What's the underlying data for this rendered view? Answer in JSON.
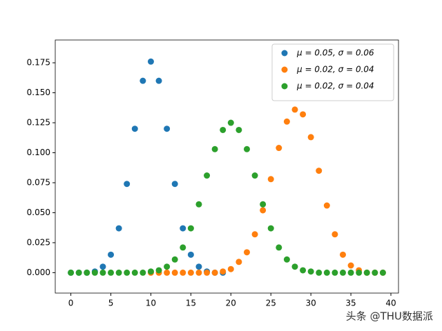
{
  "chart_data": {
    "type": "scatter",
    "legend": "upper right",
    "watermark": "头条 @THU数据派",
    "xlim": [
      -1.95,
      40.95
    ],
    "xticks": [
      0,
      5,
      10,
      15,
      20,
      25,
      30,
      35,
      40
    ],
    "ylim": [
      -0.017,
      0.194
    ],
    "yticks": [
      {
        "value": 0,
        "label": "0.000"
      },
      {
        "value": 0.025,
        "label": "0.025"
      },
      {
        "value": 0.05,
        "label": "0.050"
      },
      {
        "value": 0.075,
        "label": "0.075"
      },
      {
        "value": 0.1,
        "label": "0.100"
      },
      {
        "value": 0.125,
        "label": "0.125"
      },
      {
        "value": 0.15,
        "label": "0.150"
      },
      {
        "value": 0.175,
        "label": "0.175"
      }
    ],
    "series": [
      {
        "name": "μ = 0.05,  σ = 0.06",
        "color": "#1f77b4",
        "x": [
          0,
          1,
          2,
          3,
          4,
          5,
          6,
          7,
          8,
          9,
          10,
          11,
          12,
          13,
          14,
          15,
          16,
          17,
          18,
          19
        ],
        "values": [
          0,
          0,
          0,
          0.001,
          0.005,
          0.015,
          0.037,
          0.074,
          0.12,
          0.16,
          0.176,
          0.16,
          0.12,
          0.074,
          0.037,
          0.015,
          0.005,
          0.001,
          0,
          0
        ]
      },
      {
        "name": "μ = 0.02,  σ = 0.04",
        "color": "#ff7f0e",
        "x": [
          10,
          11,
          12,
          13,
          14,
          15,
          16,
          17,
          18,
          19,
          20,
          21,
          22,
          23,
          24,
          25,
          26,
          27,
          28,
          29,
          30,
          31,
          32,
          33,
          34,
          35,
          36,
          37,
          38,
          39
        ],
        "values": [
          0,
          0,
          0,
          0,
          0,
          0,
          0,
          0,
          0,
          0.001,
          0.003,
          0.009,
          0.017,
          0.032,
          0.052,
          0.078,
          0.104,
          0.126,
          0.136,
          0.132,
          0.113,
          0.085,
          0.056,
          0.032,
          0.015,
          0.006,
          0.002,
          0,
          0,
          0
        ]
      },
      {
        "name": "μ = 0.02,  σ = 0.04",
        "color": "#2ca02c",
        "x": [
          0,
          1,
          2,
          3,
          4,
          5,
          6,
          7,
          8,
          9,
          10,
          11,
          12,
          13,
          14,
          15,
          16,
          17,
          18,
          19,
          20,
          21,
          22,
          23,
          24,
          25,
          26,
          27,
          28,
          29,
          30,
          31,
          32,
          33,
          34,
          35,
          36,
          37,
          38,
          39
        ],
        "values": [
          0,
          0,
          0,
          0,
          0,
          0,
          0,
          0,
          0,
          0,
          0.001,
          0.002,
          0.005,
          0.011,
          0.021,
          0.037,
          0.057,
          0.081,
          0.103,
          0.119,
          0.125,
          0.119,
          0.103,
          0.081,
          0.057,
          0.037,
          0.021,
          0.011,
          0.005,
          0.002,
          0.001,
          0,
          0,
          0,
          0,
          0,
          0,
          0,
          0,
          0
        ]
      }
    ]
  }
}
